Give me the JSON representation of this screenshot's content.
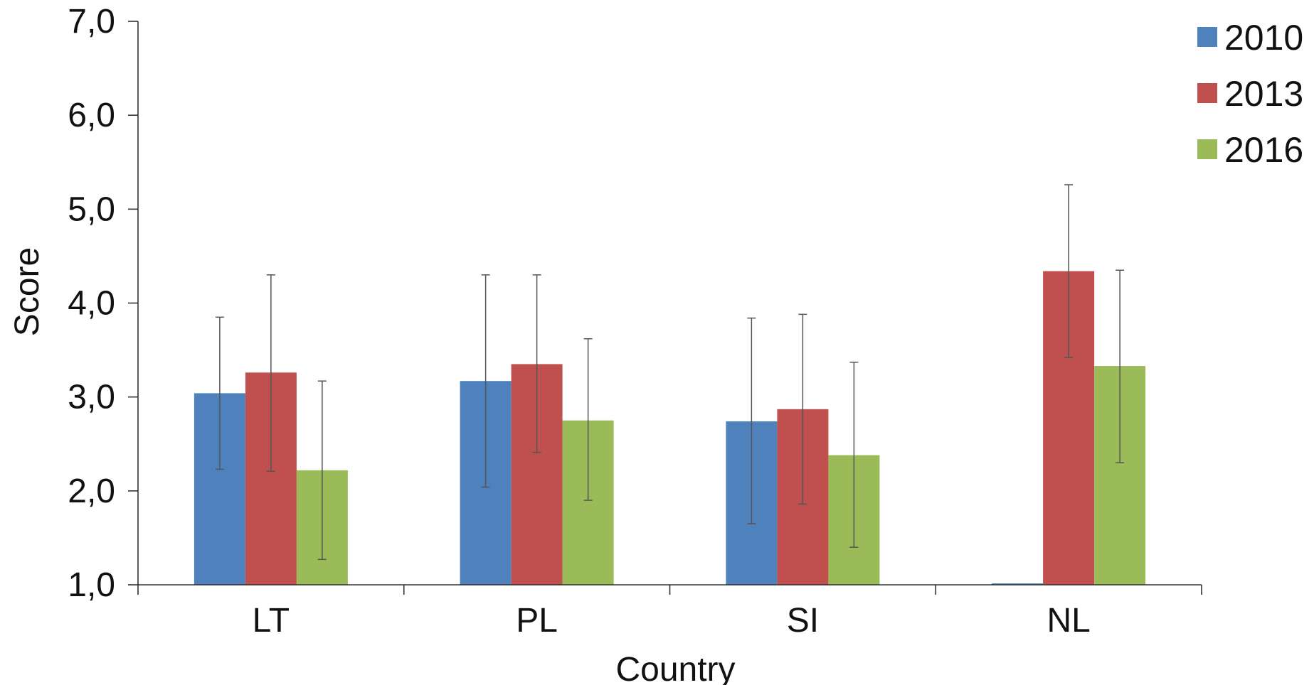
{
  "chart_data": {
    "type": "bar",
    "title": "",
    "xlabel": "Country",
    "ylabel": "Score",
    "ylim": [
      1.0,
      7.0
    ],
    "yticks": [
      "1,0",
      "2,0",
      "3,0",
      "4,0",
      "5,0",
      "6,0",
      "7,0"
    ],
    "ytick_values": [
      1,
      2,
      3,
      4,
      5,
      6,
      7
    ],
    "categories": [
      "LT",
      "PL",
      "SI",
      "NL"
    ],
    "grid": false,
    "legend_position": "top-right",
    "error_bars": true,
    "series": [
      {
        "name": "2010",
        "color": "#4F81BD",
        "values": [
          3.04,
          3.17,
          2.74,
          0.98
        ],
        "error_low": [
          2.23,
          2.04,
          1.65,
          null
        ],
        "error_high": [
          3.85,
          4.3,
          3.84,
          null
        ]
      },
      {
        "name": "2013",
        "color": "#C0504D",
        "values": [
          3.26,
          3.35,
          2.87,
          4.34
        ],
        "error_low": [
          2.21,
          2.41,
          1.86,
          3.42
        ],
        "error_high": [
          4.3,
          4.3,
          3.88,
          5.26
        ]
      },
      {
        "name": "2016",
        "color": "#9BBB59",
        "values": [
          2.22,
          2.75,
          2.38,
          3.33
        ],
        "error_low": [
          1.27,
          1.9,
          1.4,
          2.3
        ],
        "error_high": [
          3.17,
          3.62,
          3.37,
          4.35
        ]
      }
    ]
  }
}
